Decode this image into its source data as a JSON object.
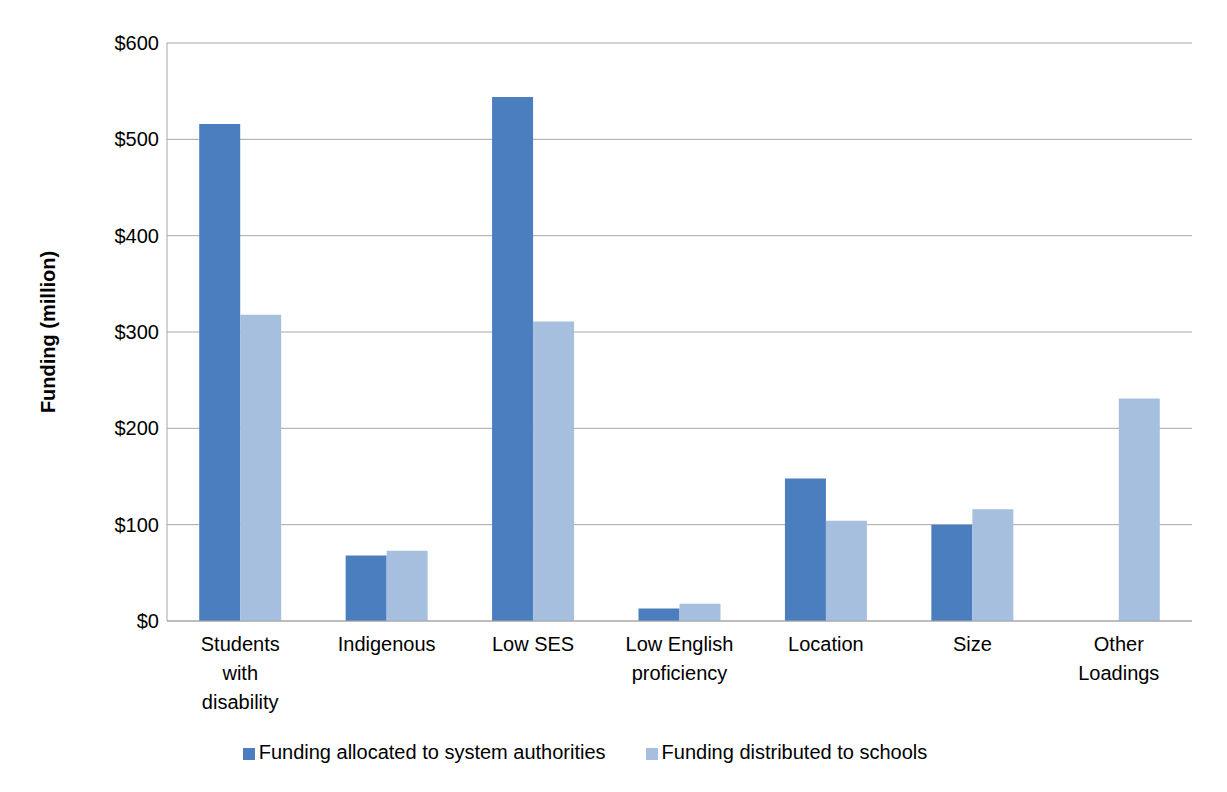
{
  "chart_data": {
    "type": "bar",
    "y_label": "Funding (million)",
    "categories": [
      "Students with disability",
      "Indigenous",
      "Low SES",
      "Low English proficiency",
      "Location",
      "Size",
      "Other Loadings"
    ],
    "series": [
      {
        "name": "Funding allocated to system authorities",
        "color": "#4a7ebf",
        "values": [
          516,
          68,
          544,
          13,
          148,
          100,
          null
        ]
      },
      {
        "name": "Funding distributed to schools",
        "color": "#a6bfdf",
        "values": [
          318,
          73,
          311,
          18,
          104,
          116,
          231
        ]
      }
    ],
    "ylim": [
      0,
      600
    ],
    "yticks": [
      {
        "value": 0,
        "label": "$0"
      },
      {
        "value": 100,
        "label": "$100"
      },
      {
        "value": 200,
        "label": "$200"
      },
      {
        "value": 300,
        "label": "$300"
      },
      {
        "value": 400,
        "label": "$400"
      },
      {
        "value": 500,
        "label": "$500"
      },
      {
        "value": 600,
        "label": "$600"
      }
    ],
    "grid": true,
    "legend": "bottom"
  }
}
